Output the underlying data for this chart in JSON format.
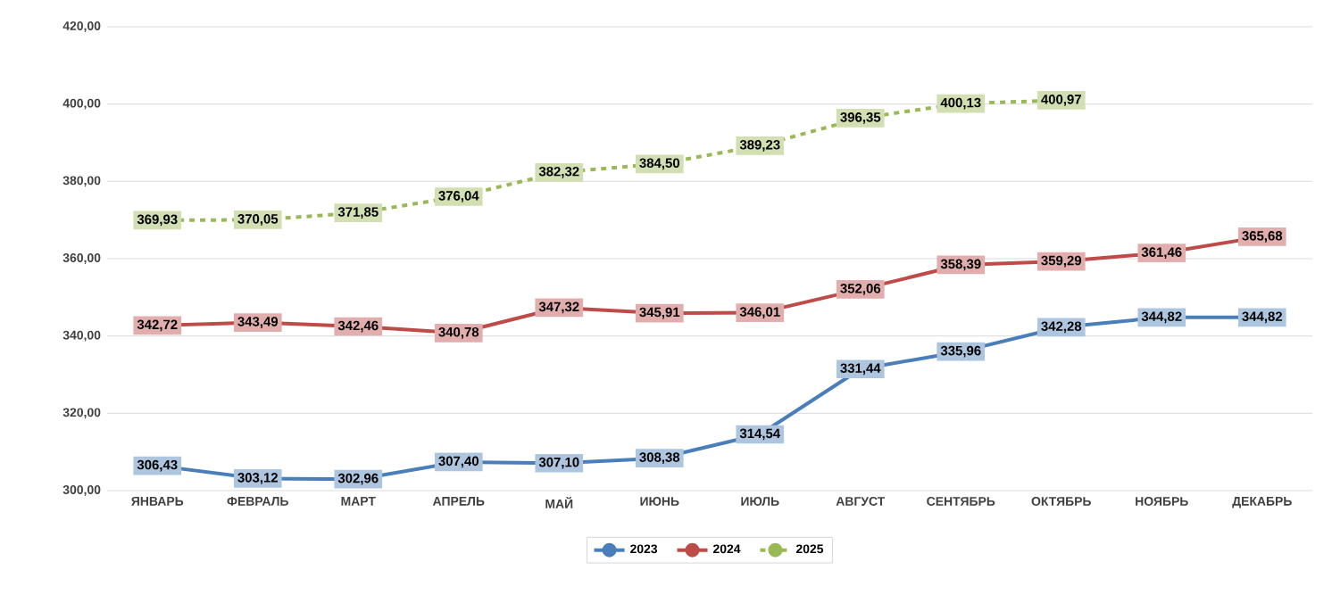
{
  "chart_data": {
    "type": "line",
    "categories": [
      "ЯНВАРЬ",
      "ФЕВРАЛЬ",
      "МАРТ",
      "АПРЕЛЬ",
      "МАЙ",
      "ИЮНЬ",
      "ИЮЛЬ",
      "АВГУСТ",
      "СЕНТЯБРЬ",
      "ОКТЯБРЬ",
      "НОЯБРЬ",
      "ДЕКАБРЬ"
    ],
    "series": [
      {
        "name": "2023",
        "color": "#4a7ebb",
        "values": [
          306.43,
          303.12,
          302.96,
          307.4,
          307.1,
          308.38,
          314.54,
          331.44,
          335.96,
          342.28,
          344.82,
          344.82
        ],
        "value_labels": [
          "306,43",
          "303,12",
          "302,96",
          "307,40",
          "307,10",
          "308,38",
          "314,54",
          "331,44",
          "335,96",
          "342,28",
          "344,82",
          "344,82"
        ]
      },
      {
        "name": "2024",
        "color": "#be4b48",
        "values": [
          342.72,
          343.49,
          342.46,
          340.78,
          347.32,
          345.91,
          346.01,
          352.06,
          358.39,
          359.29,
          361.46,
          365.68
        ],
        "value_labels": [
          "342,72",
          "343,49",
          "342,46",
          "340,78",
          "347,32",
          "345,91",
          "346,01",
          "352,06",
          "358,39",
          "359,29",
          "361,46",
          "365,68"
        ]
      },
      {
        "name": "2025",
        "color": "#98b954",
        "line_style": "dashed",
        "values": [
          369.93,
          370.05,
          371.85,
          376.04,
          382.32,
          384.5,
          389.23,
          396.35,
          400.13,
          400.97,
          null,
          null
        ],
        "value_labels": [
          "369,93",
          "370,05",
          "371,85",
          "376,04",
          "382,32",
          "384,50",
          "389,23",
          "396,35",
          "400,13",
          "400,97",
          null,
          null
        ]
      }
    ],
    "ylim": [
      300,
      420
    ],
    "yticks": [
      {
        "value": 300,
        "label": "300,00"
      },
      {
        "value": 320,
        "label": "320,00"
      },
      {
        "value": 340,
        "label": "340,00"
      },
      {
        "value": 360,
        "label": "360,00"
      },
      {
        "value": 380,
        "label": "380,00"
      },
      {
        "value": 400,
        "label": "400,00"
      },
      {
        "value": 420,
        "label": "420,00"
      }
    ],
    "grid": "y",
    "legend": "bottom",
    "marker": "circle",
    "line_style": "solid"
  }
}
